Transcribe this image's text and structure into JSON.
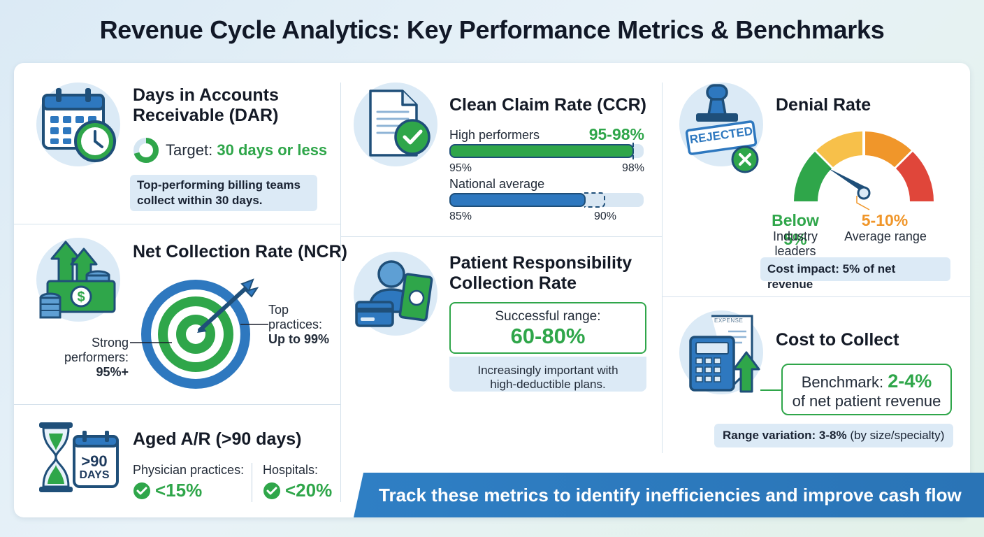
{
  "title": "Revenue Cycle Analytics: Key Performance Metrics & Benchmarks",
  "dar": {
    "title_line1": "Days in Accounts",
    "title_line2": "Receivable (DAR)",
    "target_label": "Target:",
    "target_value": "30 days or less",
    "note_line1": "Top-performing billing teams",
    "note_line2": "collect within 30 days."
  },
  "ncr": {
    "title": "Net Collection Rate (NCR)",
    "strong_line1": "Strong",
    "strong_line2": "performers:",
    "strong_value": "95%+",
    "top_line1": "Top",
    "top_line2": "practices:",
    "top_value": "Up to 99%"
  },
  "aged": {
    "title": "Aged A/R (>90 days)",
    "badge_line1": ">90",
    "badge_line2": "DAYS",
    "physician_label": "Physician practices:",
    "physician_value": "<15%",
    "hospital_label": "Hospitals:",
    "hospital_value": "<20%"
  },
  "ccr": {
    "title": "Clean Claim Rate (CCR)",
    "high_label": "High performers",
    "high_value": "95-98%",
    "high_min": "95%",
    "high_max": "98%",
    "high_fill": 0.95,
    "avg_label": "National average",
    "avg_min": "85%",
    "avg_max": "90%",
    "avg_fill": 0.7
  },
  "patient": {
    "title_line1": "Patient Responsibility",
    "title_line2": "Collection Rate",
    "range_label": "Successful range:",
    "range_value": "60-80%",
    "note_line1": "Increasingly important with",
    "note_line2": "high-deductible plans."
  },
  "denial": {
    "title": "Denial Rate",
    "stamp_text": "REJECTED",
    "below_value": "Below 5%",
    "below_label": "Industry leaders",
    "avg_value": "5-10%",
    "avg_label": "Average range",
    "cost_impact": "Cost impact: 5% of net revenue"
  },
  "cost": {
    "title": "Cost to Collect",
    "receipt_text": "EXPENSE",
    "benchmark_label": "Benchmark:",
    "benchmark_value": "2-4%",
    "benchmark_line2": "of net patient revenue",
    "range_bold": "Range variation: 3-8%",
    "range_rest": " (by size/specialty)"
  },
  "footer": "Track these metrics to identify inefficiencies and improve cash flow",
  "colors": {
    "green": "#2fa64a",
    "blue": "#2e78bf",
    "navy": "#1f4f79",
    "orange": "#f0962a",
    "red": "#e0463a",
    "yellow": "#f7c04a"
  }
}
